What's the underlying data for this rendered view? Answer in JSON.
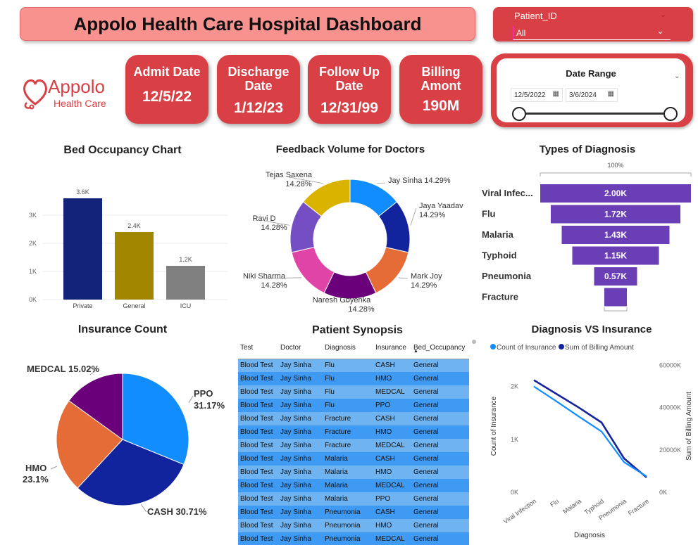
{
  "header": {
    "title": "Appolo Health Care Hospital Dashboard"
  },
  "patient_slicer": {
    "label": "Patient_ID",
    "value": "All"
  },
  "logo": {
    "name": "Appolo",
    "tagline": "Health Care"
  },
  "kpis": [
    {
      "label_line1": "Admit Date",
      "label_line2": "",
      "value": "12/5/22"
    },
    {
      "label_line1": "Discharge",
      "label_line2": "Date",
      "value": "1/12/23"
    },
    {
      "label_line1": "Follow Up",
      "label_line2": "Date",
      "value": "12/31/99"
    },
    {
      "label_line1": "Billing",
      "label_line2": "Amont",
      "value": "190M"
    }
  ],
  "date_range": {
    "title": "Date Range",
    "start": "12/5/2022",
    "end": "3/6/2024"
  },
  "colors": {
    "accent_red": "#d94045",
    "title_pink": "#f7928f",
    "funnel_purple": "#6a3fb5"
  },
  "bed_occupancy": {
    "title": "Bed Occupancy Chart"
  },
  "feedback": {
    "title": "Feedback Volume for Doctors"
  },
  "diagnosis_types": {
    "title": "Types of Diagnosis",
    "top_label": "100%"
  },
  "insurance_count": {
    "title": "Insurance Count"
  },
  "synopsis": {
    "title": "Patient Synopsis",
    "columns": [
      "Test",
      "Doctor",
      "Diagnosis",
      "Insurance",
      "Bed_Occupancy"
    ],
    "rows": [
      [
        "Blood Test",
        "Jay Sinha",
        "Flu",
        "CASH",
        "General"
      ],
      [
        "Blood Test",
        "Jay Sinha",
        "Flu",
        "HMO",
        "General"
      ],
      [
        "Blood Test",
        "Jay Sinha",
        "Flu",
        "MEDCAL",
        "General"
      ],
      [
        "Blood Test",
        "Jay Sinha",
        "Flu",
        "PPO",
        "General"
      ],
      [
        "Blood Test",
        "Jay Sinha",
        "Fracture",
        "CASH",
        "General"
      ],
      [
        "Blood Test",
        "Jay Sinha",
        "Fracture",
        "HMO",
        "General"
      ],
      [
        "Blood Test",
        "Jay Sinha",
        "Fracture",
        "MEDCAL",
        "General"
      ],
      [
        "Blood Test",
        "Jay Sinha",
        "Malaria",
        "CASH",
        "General"
      ],
      [
        "Blood Test",
        "Jay Sinha",
        "Malaria",
        "HMO",
        "General"
      ],
      [
        "Blood Test",
        "Jay Sinha",
        "Malaria",
        "MEDCAL",
        "General"
      ],
      [
        "Blood Test",
        "Jay Sinha",
        "Malaria",
        "PPO",
        "General"
      ],
      [
        "Blood Test",
        "Jay Sinha",
        "Pneumonia",
        "CASH",
        "General"
      ],
      [
        "Blood Test",
        "Jay Sinha",
        "Pneumonia",
        "HMO",
        "General"
      ],
      [
        "Blood Test",
        "Jay Sinha",
        "Pneumonia",
        "MEDCAL",
        "General"
      ]
    ]
  },
  "diag_vs_ins": {
    "title": "Diagnosis VS Insurance"
  },
  "chart_data": [
    {
      "type": "bar",
      "title": "Bed Occupancy Chart",
      "categories": [
        "Private",
        "General",
        "ICU"
      ],
      "values": [
        3600,
        2400,
        1200
      ],
      "data_labels": [
        "3.6K",
        "2.4K",
        "1.2K"
      ],
      "colors": [
        "#14237a",
        "#a38600",
        "#808080"
      ],
      "yticks": [
        "0K",
        "1K",
        "2K",
        "3K"
      ],
      "ylim": [
        0,
        4000
      ]
    },
    {
      "type": "pie",
      "title": "Feedback Volume for Doctors",
      "donut": true,
      "labels": [
        "Jay Sinha",
        "Jaya Yaadav",
        "Mark Joy",
        "Naresh Goyenka",
        "Niki Sharma",
        "Ravi D",
        "Tejas Saxena"
      ],
      "values": [
        14.29,
        14.29,
        14.29,
        14.28,
        14.28,
        14.28,
        14.28
      ],
      "percent_labels": [
        "14.29%",
        "14.29%",
        "14.29%",
        "14.28%",
        "14.28%",
        "14.28%",
        "14.28%"
      ],
      "colors": [
        "#118dff",
        "#12239e",
        "#e66c37",
        "#6b007b",
        "#e044a7",
        "#744ec2",
        "#d9b300"
      ]
    },
    {
      "type": "bar",
      "subtype": "funnel",
      "title": "Types of Diagnosis",
      "categories": [
        "Viral Infec...",
        "Flu",
        "Malaria",
        "Typhoid",
        "Pneumonia",
        "Fracture"
      ],
      "values": [
        2000,
        1720,
        1430,
        1150,
        570,
        300
      ],
      "data_labels": [
        "2.00K",
        "1.72K",
        "1.43K",
        "1.15K",
        "0.57K",
        ""
      ],
      "top_label": "100%"
    },
    {
      "type": "pie",
      "title": "Insurance Count",
      "labels": [
        "PPO",
        "CASH",
        "HMO",
        "MEDCAL"
      ],
      "values": [
        31.17,
        30.71,
        23.1,
        15.02
      ],
      "label_texts": [
        "PPO",
        "31.17%",
        "CASH 30.71%",
        "HMO",
        "23.1%",
        "MEDCAL 15.02%"
      ],
      "colors": [
        "#118dff",
        "#12239e",
        "#e66c37",
        "#6b007b"
      ]
    },
    {
      "type": "line",
      "title": "Diagnosis VS Insurance",
      "categories": [
        "Viral Infection",
        "Flu",
        "Malaria",
        "Typhoid",
        "Pneumonia",
        "Fracture"
      ],
      "xlabel": "Diagnosis",
      "series": [
        {
          "name": "Count of Insurance",
          "axis": "left",
          "color": "#118dff",
          "values": [
            2000,
            1720,
            1430,
            1150,
            570,
            300
          ]
        },
        {
          "name": "Sum of Billing Amount",
          "axis": "right",
          "color": "#12239e",
          "values": [
            53000000,
            46500000,
            40000000,
            33000000,
            16000000,
            7000000
          ]
        }
      ],
      "ylabel_left": "Count of Insurance",
      "ylabel_right": "Sum of Billing Amount",
      "yticks_left": [
        "0K",
        "1K",
        "2K"
      ],
      "ylim_left": [
        0,
        2500
      ],
      "yticks_right": [
        "0K",
        "20000K",
        "40000K",
        "60000K"
      ],
      "ylim_right": [
        0,
        62500000
      ],
      "legend": "top-left"
    }
  ]
}
